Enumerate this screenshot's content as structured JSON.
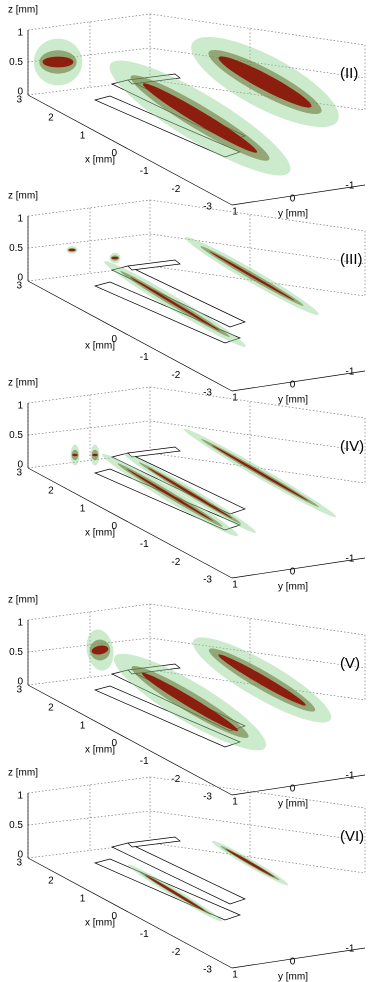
{
  "panels": [
    {
      "label": "(II)",
      "z_label": "z [mm]",
      "x_label": "x [mm]",
      "y_label": "y [mm]",
      "z_ticks": [
        1,
        0.5,
        0
      ],
      "x_ticks": [
        3,
        2,
        1,
        0,
        -1,
        -2,
        -3
      ],
      "y_ticks": [
        1,
        0,
        -1
      ]
    },
    {
      "label": "(III)",
      "z_label": "z [mm]",
      "x_label": "x [mm]",
      "y_label": "y [mm]",
      "z_ticks": [
        1,
        0.5,
        0
      ],
      "x_ticks": [
        3,
        0,
        -1,
        -2,
        -3
      ],
      "y_ticks": [
        1,
        0,
        -1
      ]
    },
    {
      "label": "(IV)",
      "z_label": "z [mm]",
      "x_label": "x [mm]",
      "y_label": "y [mm]",
      "z_ticks": [
        1,
        0.5,
        0
      ],
      "x_ticks": [
        3,
        2,
        1,
        0,
        -1,
        -2,
        -3
      ],
      "y_ticks": [
        1,
        0,
        -1
      ]
    },
    {
      "label": "(V)",
      "z_label": "z [mm]",
      "x_label": "x [mm]",
      "y_label": "y [mm]",
      "z_ticks": [
        1,
        0.5,
        0
      ],
      "x_ticks": [
        3,
        2,
        1,
        0,
        -1,
        -2,
        -3
      ],
      "y_ticks": [
        1,
        0,
        -1
      ]
    },
    {
      "label": "(VI)",
      "z_label": "z [mm]",
      "x_label": "x [mm]",
      "y_label": "y [mm]",
      "z_ticks": [
        1,
        0.5,
        0
      ],
      "x_ticks": [
        3,
        2,
        1,
        0,
        -1,
        -2,
        -3
      ],
      "y_ticks": [
        1,
        0,
        -1
      ]
    }
  ]
}
